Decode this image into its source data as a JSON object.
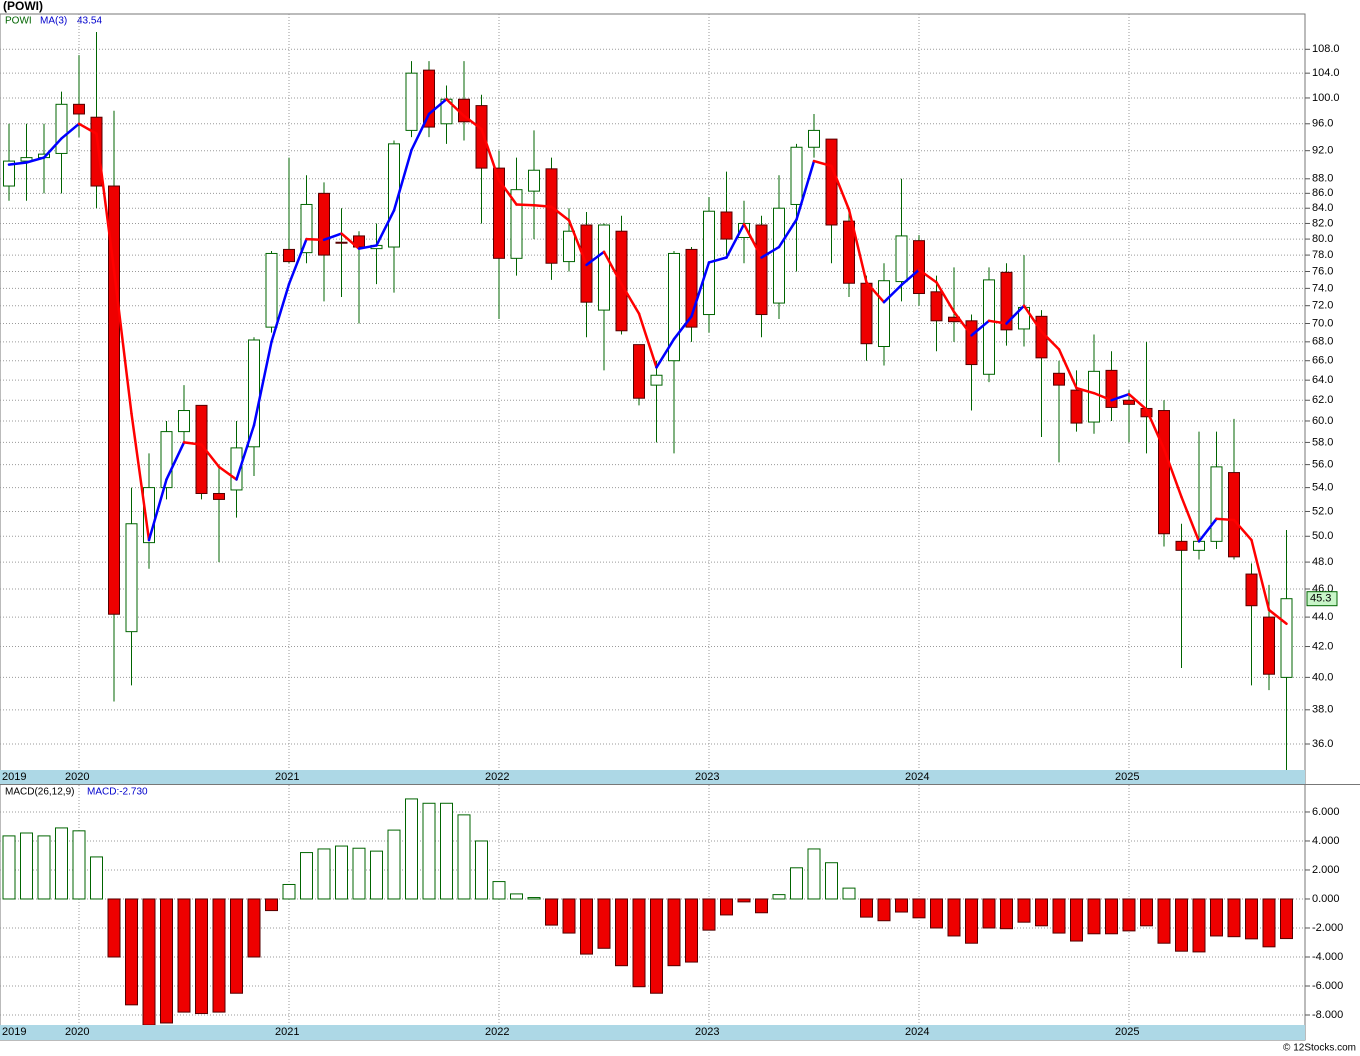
{
  "title": "(POWI)",
  "footer": "© 12Stocks.com",
  "chart_data": [
    {
      "type": "candlestick",
      "log": true,
      "grid": true,
      "categories": [
        "2019",
        null,
        null,
        null,
        "2020",
        null,
        null,
        null,
        null,
        null,
        null,
        null,
        null,
        null,
        null,
        null,
        "2021",
        null,
        null,
        null,
        null,
        null,
        null,
        null,
        null,
        null,
        null,
        null,
        "2022",
        null,
        null,
        null,
        null,
        null,
        null,
        null,
        null,
        null,
        null,
        null,
        "2023",
        null,
        null,
        null,
        null,
        null,
        null,
        null,
        null,
        null,
        null,
        null,
        "2024",
        null,
        null,
        null,
        null,
        null,
        null,
        null,
        null,
        null,
        null,
        null,
        "2025",
        null,
        null,
        null,
        null,
        null,
        null,
        null,
        null,
        null
      ],
      "ylim": [
        34.55,
        114.2
      ],
      "yticks": [
        {
          "value": 36,
          "label": "36.0"
        },
        {
          "value": 38,
          "label": "38.0"
        },
        {
          "value": 40,
          "label": "40.0"
        },
        {
          "value": 42,
          "label": "42.0"
        },
        {
          "value": 44,
          "label": "44.0"
        },
        {
          "value": 46,
          "label": "46.0"
        },
        {
          "value": 48,
          "label": "48.0"
        },
        {
          "value": 50,
          "label": "50.0"
        },
        {
          "value": 52,
          "label": "52.0"
        },
        {
          "value": 54,
          "label": "54.0"
        },
        {
          "value": 56,
          "label": "56.0"
        },
        {
          "value": 58,
          "label": "58.0"
        },
        {
          "value": 60,
          "label": "60.0"
        },
        {
          "value": 62,
          "label": "62.0"
        },
        {
          "value": 64,
          "label": "64.0"
        },
        {
          "value": 66,
          "label": "66.0"
        },
        {
          "value": 68,
          "label": "68.0"
        },
        {
          "value": 70,
          "label": "70.0"
        },
        {
          "value": 72,
          "label": "72.0"
        },
        {
          "value": 74,
          "label": "74.0"
        },
        {
          "value": 76,
          "label": "76.0"
        },
        {
          "value": 78,
          "label": "78.0"
        },
        {
          "value": 80,
          "label": "80.0"
        },
        {
          "value": 82,
          "label": "82.0"
        },
        {
          "value": 84,
          "label": "84.0"
        },
        {
          "value": 86,
          "label": "86.0"
        },
        {
          "value": 88,
          "label": "88.0"
        },
        {
          "value": 92,
          "label": "92.0"
        },
        {
          "value": 96,
          "label": "96.0"
        },
        {
          "value": 100,
          "label": "100.0"
        },
        {
          "value": 104,
          "label": "104.0"
        },
        {
          "value": 108,
          "label": "108.0"
        }
      ],
      "series": [
        {
          "name": "POWI",
          "color": "#006400",
          "up_color": "#ffffff",
          "down_color": "#ee0000",
          "open": [
            87,
            90.5,
            91,
            91.6,
            99,
            97,
            87,
            43,
            49.5,
            54,
            59,
            61.5,
            53.5,
            53.8,
            57.6,
            69.6,
            78.7,
            78.3,
            86,
            79.6,
            80.4,
            78.8,
            79,
            95,
            104.5,
            96,
            99.8,
            98.8,
            89.5,
            77.6,
            86.3,
            89.4,
            77.2,
            81.8,
            71.5,
            81,
            67.7,
            63.5,
            66,
            78.7,
            71,
            83.5,
            80.2,
            81.8,
            72.3,
            84.5,
            92.5,
            93.7,
            82.3,
            74.6,
            67.5,
            74.8,
            79.8,
            73.6,
            70.7,
            70.3,
            64.6,
            75.9,
            69.4,
            70.8,
            64.7,
            63,
            59.9,
            65,
            62,
            61.2,
            61,
            49.6,
            48.9,
            49.6,
            55.3,
            47.1,
            44,
            40
          ],
          "high": [
            96,
            96,
            96,
            101,
            107,
            111,
            98,
            54,
            57,
            60,
            63.5,
            61.5,
            56,
            60,
            68.5,
            78.5,
            91,
            88.5,
            87.5,
            84,
            81,
            82,
            93.5,
            106,
            106,
            102,
            106,
            100.5,
            92,
            91,
            95,
            91,
            84,
            83.5,
            82,
            83,
            67.7,
            66,
            78.5,
            79,
            85.5,
            89,
            85,
            83,
            88.5,
            93,
            97.5,
            93.7,
            83.5,
            75.5,
            77,
            88,
            80.5,
            75.5,
            76.5,
            71,
            76.5,
            77,
            78,
            71.5,
            66,
            65,
            68.8,
            67,
            63,
            68,
            62,
            51,
            59,
            59,
            60.2,
            47.9,
            46.3,
            50.5
          ],
          "low": [
            85,
            85,
            86,
            86,
            94,
            84,
            38.5,
            39.5,
            47.5,
            53,
            58,
            53,
            48,
            51.5,
            55,
            69,
            77,
            77,
            72.5,
            73,
            70,
            74.5,
            73.5,
            94,
            94,
            93,
            93.5,
            82,
            70.5,
            75.5,
            80,
            75,
            76,
            68.5,
            65,
            68.8,
            61.5,
            58,
            57,
            68,
            69,
            78,
            77,
            68.5,
            70.5,
            76,
            91,
            77,
            73,
            66,
            65.5,
            72.5,
            72,
            67,
            68,
            61,
            63.8,
            67.6,
            67.5,
            58.5,
            56.2,
            59,
            58.8,
            60,
            58,
            57,
            49.2,
            40.6,
            48.2,
            49,
            48.2,
            39.5,
            39.2,
            34.4
          ],
          "close": [
            90.5,
            91,
            91.5,
            99,
            97.5,
            87,
            44.2,
            51,
            54,
            59,
            61,
            53.5,
            53,
            57.5,
            68.2,
            78.2,
            77.2,
            84.5,
            78,
            79.5,
            79,
            79.2,
            93,
            104,
            95.5,
            99.8,
            96.3,
            89.5,
            77.6,
            86.5,
            89.2,
            77,
            81,
            72.4,
            81.8,
            69.2,
            62.2,
            64.5,
            78.2,
            69.6,
            83.6,
            80,
            82,
            71,
            84,
            92.5,
            95,
            81.8,
            74.6,
            67.8,
            74.9,
            80.4,
            73.4,
            70.3,
            70.2,
            65.6,
            75,
            69.3,
            71.8,
            66.3,
            63.5,
            59.8,
            64.9,
            61.3,
            61.6,
            60.4,
            50.2,
            48.9,
            49.6,
            55.8,
            48.4,
            44.8,
            40.2,
            45.3
          ]
        },
        {
          "name": "MA(3)",
          "color": "#0000cc",
          "up_color": "#0000ff",
          "down_color": "#ff0000",
          "values": [
            90,
            90.3,
            91,
            93.8,
            96,
            94.5,
            76.2,
            60.7,
            49.7,
            54.7,
            58,
            57.8,
            55.8,
            54.7,
            59.6,
            68,
            74.5,
            80,
            79.9,
            80.7,
            78.8,
            79.2,
            83.7,
            92.1,
            97.5,
            99.8,
            97.2,
            95.2,
            87.8,
            84.5,
            84.4,
            84.2,
            82.4,
            76.8,
            78.4,
            74.5,
            71.1,
            65.3,
            68.3,
            70.8,
            77.1,
            77.7,
            81.9,
            77.7,
            79,
            82.5,
            90.5,
            89.8,
            83.8,
            74.7,
            72.4,
            74.4,
            76.2,
            74.7,
            71.3,
            68.7,
            70.3,
            70,
            72,
            69.1,
            67.2,
            63.2,
            62.7,
            62,
            62.6,
            61.1,
            57.4,
            53.2,
            49.6,
            51.4,
            51.3,
            49.7,
            44.5,
            43.54
          ]
        }
      ]
    },
    {
      "type": "bar",
      "grid": true,
      "categories": [
        "2019",
        null,
        null,
        null,
        "2020",
        null,
        null,
        null,
        null,
        null,
        null,
        null,
        null,
        null,
        null,
        null,
        "2021",
        null,
        null,
        null,
        null,
        null,
        null,
        null,
        null,
        null,
        null,
        null,
        "2022",
        null,
        null,
        null,
        null,
        null,
        null,
        null,
        null,
        null,
        null,
        null,
        "2023",
        null,
        null,
        null,
        null,
        null,
        null,
        null,
        null,
        null,
        null,
        null,
        "2024",
        null,
        null,
        null,
        null,
        null,
        null,
        null,
        null,
        null,
        null,
        null,
        "2025",
        null,
        null,
        null,
        null,
        null,
        null,
        null,
        null,
        null
      ],
      "ylim": [
        -8.69,
        7.86
      ],
      "yticks": [
        {
          "value": -8,
          "label": "-8.000"
        },
        {
          "value": -6,
          "label": "-6.000"
        },
        {
          "value": -4,
          "label": "-4.000"
        },
        {
          "value": -2,
          "label": "-2.000"
        },
        {
          "value": 0,
          "label": "0.000"
        },
        {
          "value": 2,
          "label": "2.000"
        },
        {
          "value": 4,
          "label": "4.000"
        },
        {
          "value": 6,
          "label": "6.000"
        }
      ],
      "series": [
        {
          "name": "MACD(26,12,9)",
          "legend_value": "MACD:-2.730",
          "up_color": "#ffffff",
          "up_stroke": "#006400",
          "down_color": "#ee0000",
          "values": [
            4.35,
            4.55,
            4.35,
            4.9,
            4.7,
            2.9,
            -4,
            -7.3,
            -8.7,
            -8.55,
            -7.8,
            -7.9,
            -7.8,
            -6.5,
            -4,
            -0.8,
            1,
            3.2,
            3.45,
            3.65,
            3.5,
            3.3,
            4.75,
            6.9,
            6.6,
            6.6,
            5.8,
            4,
            1.2,
            0.35,
            0.1,
            -1.8,
            -2.35,
            -3.8,
            -3.4,
            -4.6,
            -6.05,
            -6.5,
            -4.6,
            -4.35,
            -2.15,
            -1.1,
            -0.2,
            -0.95,
            0.3,
            2.15,
            3.45,
            2.5,
            0.75,
            -1.25,
            -1.5,
            -0.9,
            -1.3,
            -2,
            -2.55,
            -3.05,
            -2,
            -2.05,
            -1.6,
            -1.85,
            -2.35,
            -2.9,
            -2.4,
            -2.4,
            -2.2,
            -1.85,
            -3.05,
            -3.6,
            -3.65,
            -2.55,
            -2.6,
            -2.75,
            -3.3,
            -2.73
          ]
        }
      ]
    }
  ]
}
